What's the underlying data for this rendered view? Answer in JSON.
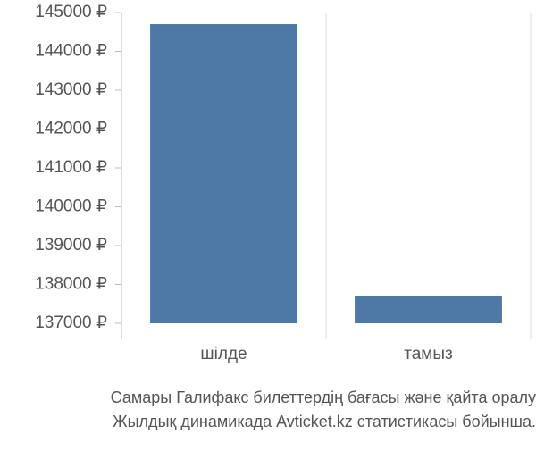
{
  "chart_data": {
    "type": "bar",
    "categories": [
      "шілде",
      "тамыз"
    ],
    "values": [
      144700,
      137700
    ],
    "color": "#4e79a7",
    "ylim": [
      137000,
      145000
    ],
    "yticks": [
      {
        "value": 137000,
        "label": "137000 ₽"
      },
      {
        "value": 138000,
        "label": "138000 ₽"
      },
      {
        "value": 139000,
        "label": "139000 ₽"
      },
      {
        "value": 140000,
        "label": "140000 ₽"
      },
      {
        "value": 141000,
        "label": "141000 ₽"
      },
      {
        "value": 142000,
        "label": "142000 ₽"
      },
      {
        "value": 143000,
        "label": "143000 ₽"
      },
      {
        "value": 144000,
        "label": "144000 ₽"
      },
      {
        "value": 145000,
        "label": "145000 ₽"
      }
    ],
    "caption": [
      "Самары Галифакс билеттердің бағасы және қайта оралу",
      "Жылдық динамикада Avticket.kz статистикасы бойынша."
    ]
  }
}
